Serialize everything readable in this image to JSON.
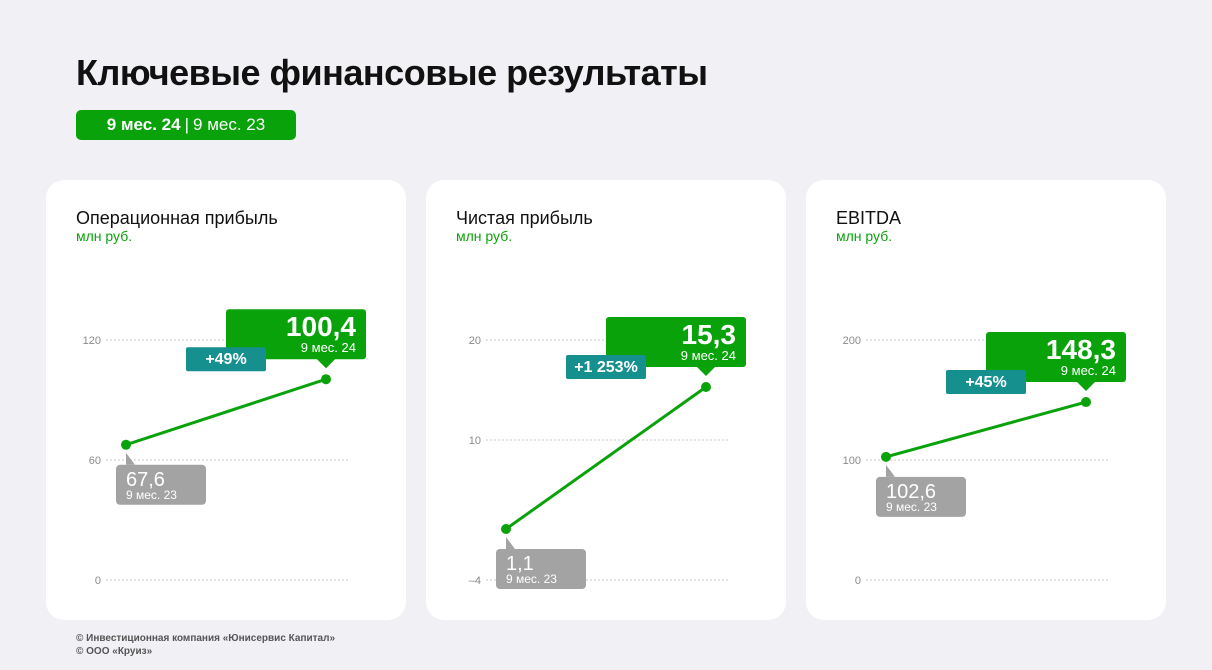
{
  "header": {
    "title": "Ключевые финансовые результаты",
    "period_current": "9 мес. 24",
    "period_separator": "|",
    "period_previous": "9 мес. 23"
  },
  "colors": {
    "accent_green": "#0aa20a",
    "delta_teal": "#168f8f",
    "previous_gray": "#a3a3a3",
    "grid": "#c9c9c9"
  },
  "chart_data": [
    {
      "type": "line",
      "title": "Операционная прибыль",
      "ylabel": "млн руб.",
      "ylim": [
        0,
        120
      ],
      "ticks": [
        {
          "value": 0,
          "label": "0"
        },
        {
          "value": 60,
          "label": "60"
        },
        {
          "value": 120,
          "label": "120"
        }
      ],
      "x": [
        "9 мес. 23",
        "9 мес. 24"
      ],
      "values": [
        67.6,
        100.4
      ],
      "value_labels": [
        "67,6",
        "100,4"
      ],
      "delta_label": "+49%"
    },
    {
      "type": "line",
      "title": "Чистая прибыль",
      "ylabel": "млн руб.",
      "ylim": [
        -4,
        20
      ],
      "ticks": [
        {
          "value": -4,
          "label": "–4"
        },
        {
          "value": 10,
          "label": "10"
        },
        {
          "value": 20,
          "label": "20"
        }
      ],
      "x": [
        "9 мес. 23",
        "9 мес. 24"
      ],
      "values": [
        1.1,
        15.3
      ],
      "value_labels": [
        "1,1",
        "15,3"
      ],
      "delta_label": "+1 253%"
    },
    {
      "type": "line",
      "title": "EBITDA",
      "ylabel": "млн руб.",
      "ylim": [
        0,
        200
      ],
      "ticks": [
        {
          "value": 0,
          "label": "0"
        },
        {
          "value": 100,
          "label": "100"
        },
        {
          "value": 200,
          "label": "200"
        }
      ],
      "x": [
        "9 мес. 23",
        "9 мес. 24"
      ],
      "values": [
        102.6,
        148.3
      ],
      "value_labels": [
        "102,6",
        "148,3"
      ],
      "delta_label": "+45%"
    }
  ],
  "footer": {
    "line1": "© Инвестиционная компания «Юнисервис Капитал»",
    "line2": "© ООО «Круиз»"
  }
}
